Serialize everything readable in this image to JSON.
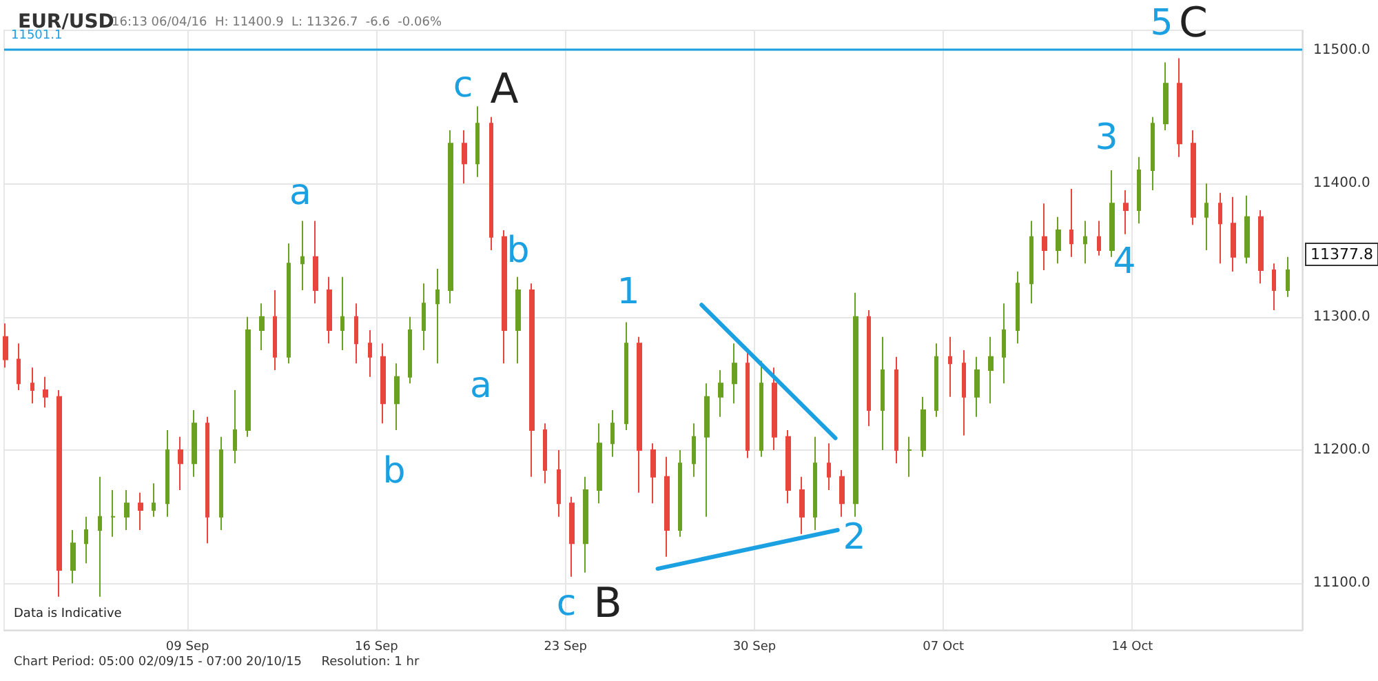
{
  "chart_data": {
    "type": "candlestick",
    "title": "EUR/USD",
    "subtitle": "16:13 06/04/16  H: 11400.9  L: 11326.7  -6.6  -0.06%",
    "x": [
      "--09-02T06:00",
      "--09-02T18:00",
      "--09-03T06:00",
      "--09-03T18:00",
      "--09-04T06:00",
      "--09-04T18:00",
      "--09-05T06:00",
      "--09-05T18:00",
      "--09-06T06:00",
      "--09-06T18:00",
      "--09-07T06:00",
      "--09-07T18:00",
      "--09-08T06:00",
      "--09-08T18:00",
      "--09-09T06:00",
      "--09-09T18:00",
      "--09-10T06:00",
      "--09-10T18:00",
      "--09-11T06:00",
      "--09-11T18:00",
      "--09-12T06:00",
      "--09-12T18:00",
      "--09-13T06:00",
      "--09-13T18:00",
      "--09-14T06:00",
      "--09-14T18:00",
      "--09-15T06:00",
      "--09-15T18:00",
      "--09-16T06:00",
      "--09-16T18:00",
      "--09-17T06:00",
      "--09-17T18:00",
      "--09-18T06:00",
      "--09-18T18:00",
      "--09-19T06:00",
      "--09-19T18:00",
      "--09-20T06:00",
      "--09-20T18:00",
      "--09-21T06:00",
      "--09-21T18:00",
      "--09-22T06:00",
      "--09-22T18:00",
      "--09-23T06:00",
      "--09-23T18:00",
      "--09-24T06:00",
      "--09-24T18:00",
      "--09-25T06:00",
      "--09-25T18:00",
      "--09-26T06:00",
      "--09-26T18:00",
      "--09-27T06:00",
      "--09-27T18:00",
      "--09-28T06:00",
      "--09-28T18:00",
      "--09-29T06:00",
      "--09-29T18:00",
      "--09-30T06:00",
      "--09-30T18:00",
      "--10-01T06:00",
      "--10-01T18:00",
      "--10-02T06:00",
      "--10-02T18:00",
      "--10-03T06:00",
      "--10-03T18:00",
      "--10-04T06:00",
      "--10-04T18:00",
      "--10-05T06:00",
      "--10-05T18:00",
      "--10-06T06:00",
      "--10-06T18:00",
      "--10-07T06:00",
      "--10-07T18:00",
      "--10-08T06:00",
      "--10-08T18:00",
      "--10-09T06:00",
      "--10-09T18:00",
      "--10-10T06:00",
      "--10-10T18:00",
      "--10-11T06:00",
      "--10-11T18:00",
      "--10-12T06:00",
      "--10-12T18:00",
      "--10-13T06:00",
      "--10-13T18:00",
      "--10-14T06:00",
      "--10-14T18:00",
      "--10-15T06:00",
      "--10-15T18:00",
      "--10-16T06:00",
      "--10-16T18:00",
      "--10-17T06:00",
      "--10-17T18:00",
      "--10-18T06:00",
      "--10-18T18:00",
      "--10-19T06:00",
      "--10-19T18:00"
    ],
    "ohlc": [
      [
        11285,
        11295,
        11262,
        11268
      ],
      [
        11268,
        11280,
        11245,
        11250
      ],
      [
        11250,
        11262,
        11235,
        11245
      ],
      [
        11245,
        11255,
        11232,
        11240
      ],
      [
        11240,
        11245,
        11090,
        11110
      ],
      [
        11110,
        11140,
        11100,
        11130
      ],
      [
        11130,
        11150,
        11115,
        11140
      ],
      [
        11140,
        11180,
        11090,
        11150
      ],
      [
        11150,
        11170,
        11135,
        11150
      ],
      [
        11150,
        11170,
        11140,
        11160
      ],
      [
        11160,
        11168,
        11140,
        11155
      ],
      [
        11155,
        11175,
        11150,
        11160
      ],
      [
        11160,
        11215,
        11150,
        11200
      ],
      [
        11200,
        11210,
        11170,
        11190
      ],
      [
        11190,
        11230,
        11180,
        11220
      ],
      [
        11220,
        11225,
        11130,
        11150
      ],
      [
        11150,
        11210,
        11140,
        11200
      ],
      [
        11200,
        11245,
        11190,
        11215
      ],
      [
        11215,
        11300,
        11210,
        11290
      ],
      [
        11290,
        11310,
        11275,
        11300
      ],
      [
        11300,
        11320,
        11260,
        11270
      ],
      [
        11270,
        11355,
        11265,
        11340
      ],
      [
        11340,
        11372,
        11320,
        11345
      ],
      [
        11345,
        11372,
        11310,
        11320
      ],
      [
        11320,
        11330,
        11280,
        11290
      ],
      [
        11290,
        11330,
        11275,
        11300
      ],
      [
        11300,
        11310,
        11265,
        11280
      ],
      [
        11280,
        11290,
        11255,
        11270
      ],
      [
        11270,
        11280,
        11220,
        11235
      ],
      [
        11235,
        11265,
        11215,
        11255
      ],
      [
        11255,
        11300,
        11250,
        11290
      ],
      [
        11290,
        11325,
        11275,
        11310
      ],
      [
        11310,
        11336,
        11265,
        11320
      ],
      [
        11320,
        11440,
        11310,
        11430
      ],
      [
        11430,
        11440,
        11400,
        11415
      ],
      [
        11415,
        11458,
        11405,
        11445
      ],
      [
        11445,
        11450,
        11350,
        11360
      ],
      [
        11360,
        11365,
        11265,
        11290
      ],
      [
        11290,
        11330,
        11265,
        11320
      ],
      [
        11320,
        11325,
        11180,
        11215
      ],
      [
        11215,
        11220,
        11175,
        11185
      ],
      [
        11185,
        11200,
        11150,
        11160
      ],
      [
        11160,
        11165,
        11105,
        11130
      ],
      [
        11130,
        11180,
        11108,
        11170
      ],
      [
        11170,
        11220,
        11160,
        11205
      ],
      [
        11205,
        11230,
        11195,
        11220
      ],
      [
        11220,
        11296,
        11215,
        11280
      ],
      [
        11280,
        11285,
        11168,
        11200
      ],
      [
        11200,
        11205,
        11160,
        11180
      ],
      [
        11180,
        11195,
        11120,
        11140
      ],
      [
        11140,
        11200,
        11135,
        11190
      ],
      [
        11190,
        11220,
        11180,
        11210
      ],
      [
        11210,
        11250,
        11150,
        11240
      ],
      [
        11240,
        11260,
        11225,
        11250
      ],
      [
        11250,
        11280,
        11235,
        11265
      ],
      [
        11265,
        11275,
        11194,
        11200
      ],
      [
        11200,
        11267,
        11195,
        11250
      ],
      [
        11250,
        11262,
        11200,
        11210
      ],
      [
        11210,
        11215,
        11160,
        11170
      ],
      [
        11170,
        11180,
        11137,
        11150
      ],
      [
        11150,
        11210,
        11140,
        11190
      ],
      [
        11190,
        11205,
        11170,
        11180
      ],
      [
        11180,
        11185,
        11150,
        11160
      ],
      [
        11160,
        11318,
        11150,
        11300
      ],
      [
        11300,
        11305,
        11218,
        11230
      ],
      [
        11230,
        11285,
        11200,
        11260
      ],
      [
        11260,
        11270,
        11190,
        11200
      ],
      [
        11200,
        11210,
        11180,
        11200
      ],
      [
        11200,
        11240,
        11195,
        11230
      ],
      [
        11230,
        11280,
        11225,
        11270
      ],
      [
        11270,
        11285,
        11240,
        11265
      ],
      [
        11265,
        11275,
        11211,
        11240
      ],
      [
        11240,
        11270,
        11225,
        11260
      ],
      [
        11260,
        11285,
        11235,
        11270
      ],
      [
        11270,
        11310,
        11250,
        11290
      ],
      [
        11290,
        11334,
        11280,
        11325
      ],
      [
        11325,
        11372,
        11310,
        11360
      ],
      [
        11360,
        11385,
        11335,
        11350
      ],
      [
        11350,
        11375,
        11340,
        11365
      ],
      [
        11365,
        11396,
        11345,
        11355
      ],
      [
        11355,
        11372,
        11340,
        11360
      ],
      [
        11360,
        11372,
        11346,
        11350
      ],
      [
        11350,
        11410,
        11345,
        11385
      ],
      [
        11385,
        11395,
        11362,
        11380
      ],
      [
        11380,
        11420,
        11370,
        11410
      ],
      [
        11410,
        11450,
        11395,
        11445
      ],
      [
        11445,
        11491,
        11440,
        11475
      ],
      [
        11475,
        11494,
        11420,
        11430
      ],
      [
        11430,
        11440,
        11369,
        11375
      ],
      [
        11375,
        11400,
        11350,
        11385
      ],
      [
        11385,
        11393,
        11340,
        11370
      ],
      [
        11370,
        11390,
        11334,
        11345
      ],
      [
        11345,
        11391,
        11340,
        11375
      ],
      [
        11375,
        11380,
        11325,
        11335
      ],
      [
        11335,
        11340,
        11305,
        11320
      ],
      [
        11320,
        11345,
        11315,
        11335
      ]
    ],
    "series": [
      {
        "type": "line",
        "color": "#1ba1e2",
        "x": [
          "--09-28T01:00",
          "--10-03T00:00"
        ],
        "values": [
          11309,
          11209
        ]
      },
      {
        "type": "line",
        "color": "#1ba1e2",
        "x": [
          "--09-26T10:00",
          "--10-03T02:00"
        ],
        "values": [
          11111,
          11140
        ]
      }
    ],
    "marker": "none",
    "xlim": [
      "--09-02T05:00",
      "--10-20T07:00"
    ],
    "xticks": [
      {
        "value": "--09-09",
        "label": "09 Sep"
      },
      {
        "value": "--09-16",
        "label": "16 Sep"
      },
      {
        "value": "--09-23",
        "label": "23 Sep"
      },
      {
        "value": "--09-30",
        "label": "30 Sep"
      },
      {
        "value": "--10-07",
        "label": "07 Oct"
      },
      {
        "value": "--10-14",
        "label": "14 Oct"
      }
    ],
    "ylim": [
      11065,
      11515
    ],
    "yticks": [
      {
        "value": 11100,
        "label": "11100.0"
      },
      {
        "value": 11200,
        "label": "11200.0"
      },
      {
        "value": 11300,
        "label": "11300.0"
      },
      {
        "value": 11400,
        "label": "11400.0"
      },
      {
        "value": 11500,
        "label": "11500.0"
      }
    ],
    "grid": true,
    "ref_lines": [
      {
        "axis": "y",
        "value": 11501.1,
        "label": "11501.1",
        "color": "#1ba1e2"
      }
    ],
    "annotations": [
      "Data is Indicative",
      "Chart Period: 05:00 02/09/15 - 07:00 20/10/15     Resolution: 1 hr",
      "11377.8",
      "a",
      "b",
      "c",
      "A",
      "b",
      "a",
      "1",
      "c",
      "B",
      "2",
      "3",
      "4",
      "5",
      "C"
    ]
  }
}
